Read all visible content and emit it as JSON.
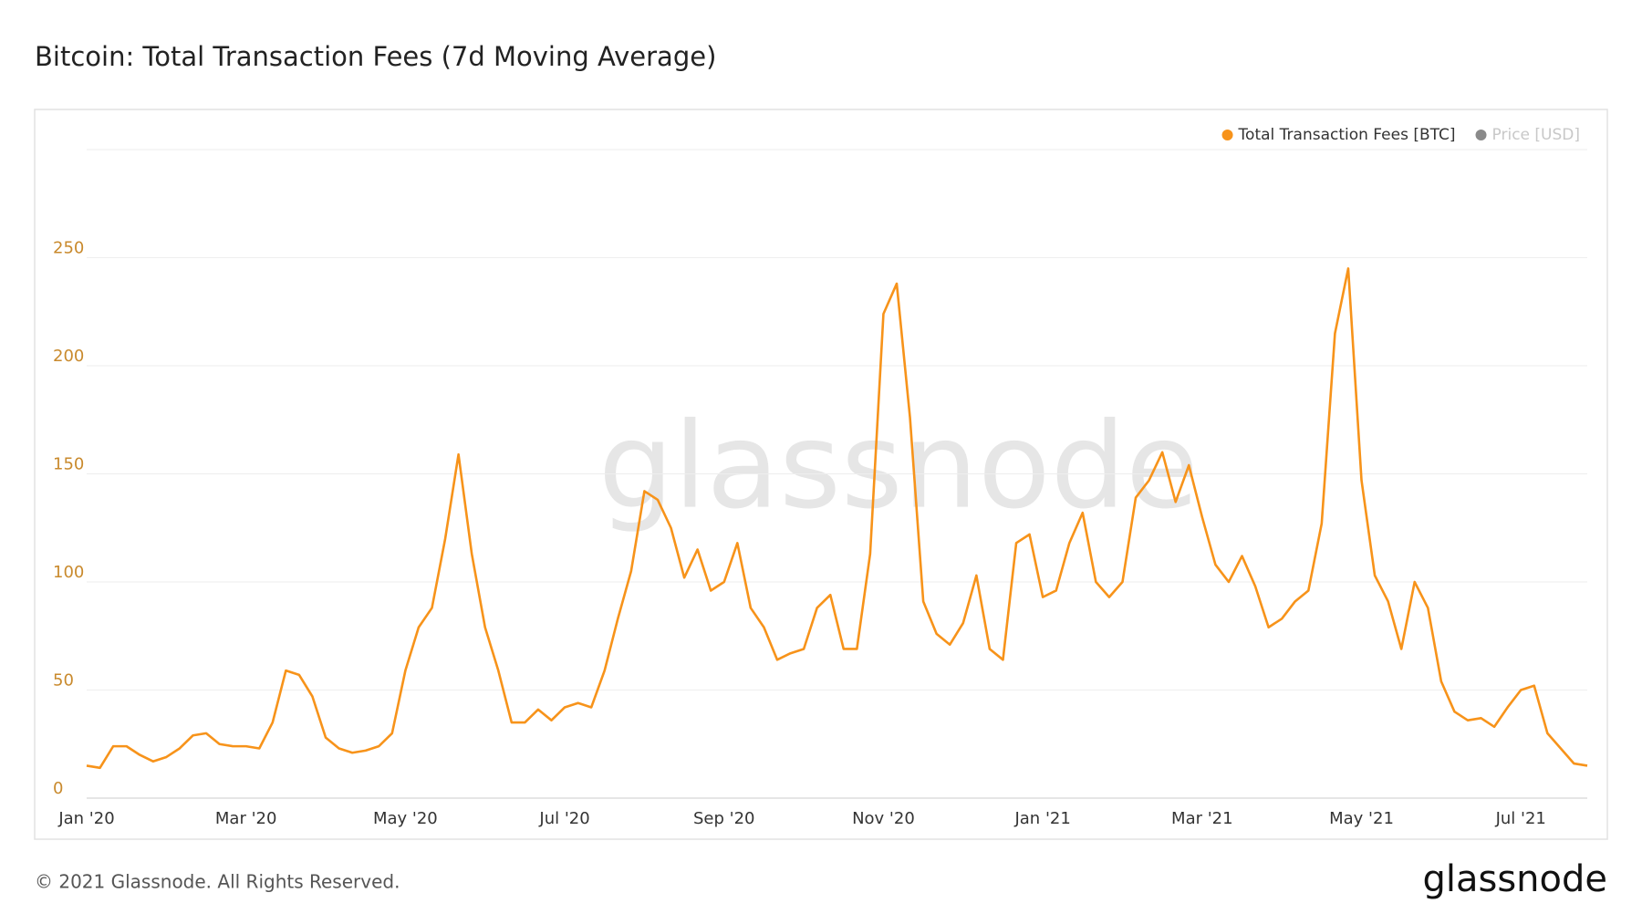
{
  "chart_data": {
    "type": "line",
    "title": "Bitcoin: Total Transaction Fees (7d Moving Average)",
    "watermark": "glassnode",
    "footer": "© 2021 Glassnode. All Rights Reserved.",
    "logo": "glassnode",
    "categories": [
      "Jan '20",
      null,
      null,
      null,
      null,
      null,
      null,
      null,
      null,
      null,
      null,
      null,
      "Mar '20",
      null,
      null,
      null,
      null,
      null,
      null,
      null,
      null,
      null,
      null,
      null,
      "May '20",
      null,
      null,
      null,
      null,
      null,
      null,
      null,
      null,
      null,
      null,
      null,
      "Jul '20",
      null,
      null,
      null,
      null,
      null,
      null,
      null,
      null,
      null,
      null,
      null,
      "Sep '20",
      null,
      null,
      null,
      null,
      null,
      null,
      null,
      null,
      null,
      null,
      null,
      "Nov '20",
      null,
      null,
      null,
      null,
      null,
      null,
      null,
      null,
      null,
      null,
      null,
      "Jan '21",
      null,
      null,
      null,
      null,
      null,
      null,
      null,
      null,
      null,
      null,
      null,
      "Mar '21",
      null,
      null,
      null,
      null,
      null,
      null,
      null,
      null,
      null,
      null,
      null,
      "May '21",
      null,
      null,
      null,
      null,
      null,
      null,
      null,
      null,
      null,
      null,
      null,
      "Jul '21",
      null,
      null,
      null,
      null,
      null
    ],
    "series": [
      {
        "name": "Total Transaction Fees [BTC]",
        "color": "#f7931a",
        "values": [
          15,
          14,
          24,
          24,
          20,
          17,
          19,
          23,
          29,
          30,
          25,
          24,
          24,
          23,
          35,
          59,
          57,
          47,
          28,
          23,
          21,
          22,
          24,
          30,
          59,
          79,
          88,
          120,
          159,
          113,
          79,
          59,
          35,
          35,
          41,
          36,
          42,
          44,
          42,
          59,
          83,
          105,
          142,
          138,
          125,
          102,
          115,
          96,
          100,
          118,
          88,
          79,
          64,
          67,
          69,
          88,
          94,
          69,
          69,
          113,
          224,
          238,
          176,
          91,
          76,
          71,
          81,
          103,
          69,
          64,
          118,
          122,
          93,
          96,
          118,
          132,
          100,
          93,
          100,
          139,
          147,
          160,
          137,
          154,
          130,
          108,
          100,
          112,
          98,
          79,
          83,
          91,
          96,
          127,
          215,
          245,
          147,
          103,
          91,
          69,
          100,
          88,
          54,
          40,
          36,
          37,
          33,
          42,
          50,
          52,
          30,
          23,
          16,
          15
        ]
      }
    ],
    "inactive_legend": {
      "name": "Price [USD]",
      "color": "#8a8a8a"
    },
    "ylim": [
      0,
      300
    ],
    "yticks": [
      0,
      50,
      100,
      150,
      200,
      250
    ],
    "grid": true
  }
}
